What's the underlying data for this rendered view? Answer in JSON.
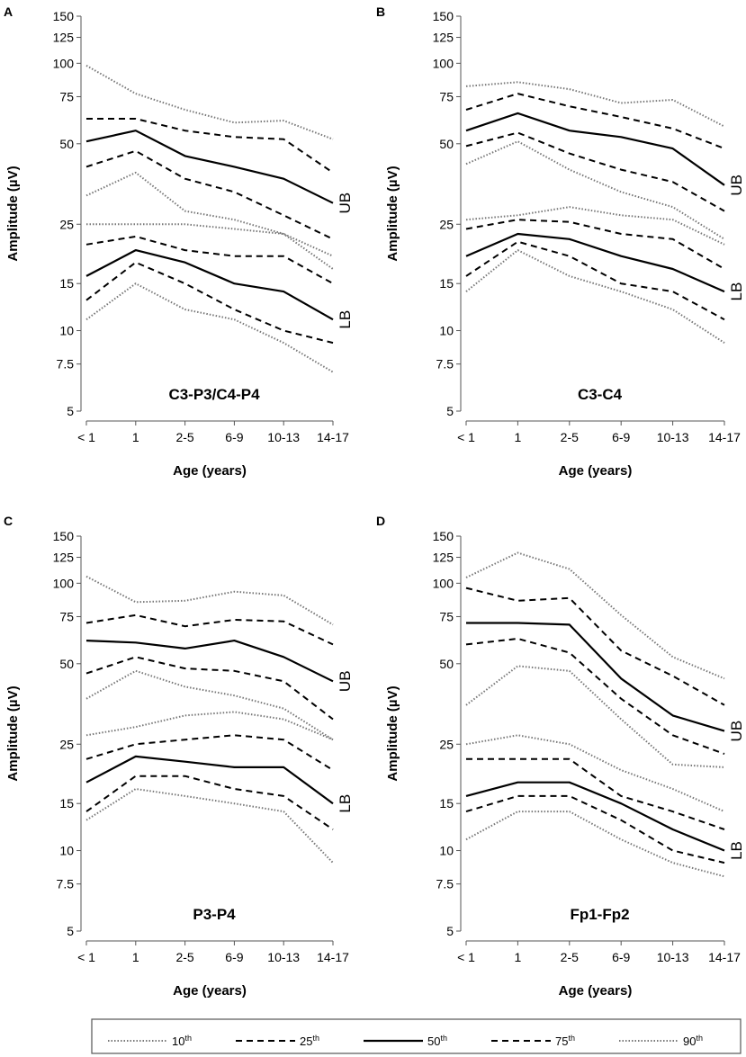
{
  "figure": {
    "y_axis_label": "Amplitude (µV)",
    "x_axis_label": "Age (years)"
  },
  "legend": [
    {
      "key": "p10",
      "label": "10",
      "sup": "th",
      "style": "dotted"
    },
    {
      "key": "p25",
      "label": "25",
      "sup": "th",
      "style": "dashed"
    },
    {
      "key": "p50",
      "label": "50",
      "sup": "th",
      "style": "solid"
    },
    {
      "key": "p75",
      "label": "75",
      "sup": "th",
      "style": "dashed"
    },
    {
      "key": "p90",
      "label": "90",
      "sup": "th",
      "style": "dotted"
    }
  ],
  "chart_data": [
    {
      "type": "line",
      "panel": "A",
      "title": "C3-P3/C4-P4",
      "xlabel": "Age (years)",
      "ylabel": "Amplitude (µV)",
      "yscale": "log",
      "ylim": [
        5,
        150
      ],
      "categories": [
        "< 1",
        "1",
        "2-5",
        "6-9",
        "10-13",
        "14-17"
      ],
      "yticks": [
        5,
        7.5,
        10,
        15,
        25,
        50,
        75,
        100,
        125,
        150
      ],
      "ytick_labels": [
        "5",
        "7.5",
        "10",
        "15",
        "25",
        "50",
        "75",
        "100",
        "125",
        "150"
      ],
      "band_labels": {
        "UB": "UB",
        "LB": "LB"
      },
      "series": [
        {
          "name": "UB 90th",
          "style": "dotted",
          "values": [
            98,
            77,
            67,
            60,
            61,
            52
          ]
        },
        {
          "name": "UB 75th",
          "style": "dashed",
          "values": [
            62,
            62,
            56,
            53,
            52,
            39
          ]
        },
        {
          "name": "UB 50th",
          "style": "solid",
          "values": [
            51,
            56,
            45,
            41,
            37,
            30
          ]
        },
        {
          "name": "UB 25th",
          "style": "dashed",
          "values": [
            41,
            47,
            37,
            33,
            27,
            22
          ]
        },
        {
          "name": "UB 10th",
          "style": "dotted",
          "values": [
            32,
            39,
            28,
            26,
            23,
            17
          ]
        },
        {
          "name": "LB 90th",
          "style": "dotted",
          "values": [
            25,
            25,
            25,
            24,
            23,
            19
          ]
        },
        {
          "name": "LB 75th",
          "style": "dashed",
          "values": [
            21,
            22.5,
            20,
            19,
            19,
            15
          ]
        },
        {
          "name": "LB 50th",
          "style": "solid",
          "values": [
            16,
            20,
            18,
            15,
            14,
            11
          ]
        },
        {
          "name": "LB 25th",
          "style": "dashed",
          "values": [
            13,
            18,
            15,
            12,
            10,
            9
          ]
        },
        {
          "name": "LB 10th",
          "style": "dotted",
          "values": [
            11,
            15,
            12,
            11,
            9,
            7
          ]
        }
      ]
    },
    {
      "type": "line",
      "panel": "B",
      "title": "C3-C4",
      "xlabel": "Age (years)",
      "ylabel": "Amplitude (µV)",
      "yscale": "log",
      "ylim": [
        5,
        150
      ],
      "categories": [
        "< 1",
        "1",
        "2-5",
        "6-9",
        "10-13",
        "14-17"
      ],
      "yticks": [
        5,
        7.5,
        10,
        15,
        25,
        50,
        75,
        100,
        125,
        150
      ],
      "ytick_labels": [
        "5",
        "7.5",
        "10",
        "15",
        "25",
        "50",
        "75",
        "100",
        "125",
        "150"
      ],
      "band_labels": {
        "UB": "UB",
        "LB": "LB"
      },
      "series": [
        {
          "name": "UB 90th",
          "style": "dotted",
          "values": [
            82,
            85,
            80,
            71,
            73,
            58
          ]
        },
        {
          "name": "UB 75th",
          "style": "dashed",
          "values": [
            67,
            77,
            69,
            63,
            57,
            48
          ]
        },
        {
          "name": "UB 50th",
          "style": "solid",
          "values": [
            56,
            65,
            56,
            53,
            48,
            35
          ]
        },
        {
          "name": "UB 25th",
          "style": "dashed",
          "values": [
            49,
            55,
            46,
            40,
            36,
            28
          ]
        },
        {
          "name": "UB 10th",
          "style": "dotted",
          "values": [
            42,
            51,
            40,
            33,
            29,
            22
          ]
        },
        {
          "name": "LB 90th",
          "style": "dotted",
          "values": [
            26,
            27,
            29,
            27,
            26,
            21
          ]
        },
        {
          "name": "LB 75th",
          "style": "dashed",
          "values": [
            24,
            26,
            25.5,
            23,
            22,
            17
          ]
        },
        {
          "name": "LB 50th",
          "style": "solid",
          "values": [
            19,
            23,
            22,
            19,
            17,
            14
          ]
        },
        {
          "name": "LB 25th",
          "style": "dashed",
          "values": [
            16,
            21.5,
            19,
            15,
            14,
            11
          ]
        },
        {
          "name": "LB 10th",
          "style": "dotted",
          "values": [
            14,
            20,
            16,
            14,
            12,
            9
          ]
        }
      ]
    },
    {
      "type": "line",
      "panel": "C",
      "title": "P3-P4",
      "xlabel": "Age (years)",
      "ylabel": "Amplitude (µV)",
      "yscale": "log",
      "ylim": [
        5,
        150
      ],
      "categories": [
        "< 1",
        "1",
        "2-5",
        "6-9",
        "10-13",
        "14-17"
      ],
      "yticks": [
        5,
        7.5,
        10,
        15,
        25,
        50,
        75,
        100,
        125,
        150
      ],
      "ytick_labels": [
        "5",
        "7.5",
        "10",
        "15",
        "25",
        "50",
        "75",
        "100",
        "125",
        "150"
      ],
      "band_labels": {
        "UB": "UB",
        "LB": "LB"
      },
      "series": [
        {
          "name": "UB 90th",
          "style": "dotted",
          "values": [
            106,
            85,
            86,
            93,
            90,
            70
          ]
        },
        {
          "name": "UB 75th",
          "style": "dashed",
          "values": [
            71,
            76,
            69,
            73,
            72,
            59
          ]
        },
        {
          "name": "UB 50th",
          "style": "solid",
          "values": [
            61,
            60,
            57,
            61,
            53,
            43
          ]
        },
        {
          "name": "UB 25th",
          "style": "dashed",
          "values": [
            46,
            53,
            48,
            47,
            43,
            31
          ]
        },
        {
          "name": "UB 10th",
          "style": "dotted",
          "values": [
            37,
            47,
            41,
            38,
            34,
            26
          ]
        },
        {
          "name": "LB 90th",
          "style": "dotted",
          "values": [
            27,
            29,
            32,
            33,
            31,
            26
          ]
        },
        {
          "name": "LB 75th",
          "style": "dashed",
          "values": [
            22,
            25,
            26,
            27,
            26,
            20
          ]
        },
        {
          "name": "LB 50th",
          "style": "solid",
          "values": [
            18,
            22.5,
            21.5,
            20.5,
            20.5,
            15
          ]
        },
        {
          "name": "LB 25th",
          "style": "dashed",
          "values": [
            14,
            19,
            19,
            17,
            16,
            12
          ]
        },
        {
          "name": "LB 10th",
          "style": "dotted",
          "values": [
            13,
            17,
            16,
            15,
            14,
            9
          ]
        }
      ]
    },
    {
      "type": "line",
      "panel": "D",
      "title": "Fp1-Fp2",
      "xlabel": "Age (years)",
      "ylabel": "Amplitude (µV)",
      "yscale": "log",
      "ylim": [
        5,
        150
      ],
      "categories": [
        "< 1",
        "1",
        "2-5",
        "6-9",
        "10-13",
        "14-17"
      ],
      "yticks": [
        5,
        7.5,
        10,
        15,
        25,
        50,
        75,
        100,
        125,
        150
      ],
      "ytick_labels": [
        "5",
        "7.5",
        "10",
        "15",
        "25",
        "50",
        "75",
        "100",
        "125",
        "150"
      ],
      "band_labels": {
        "UB": "UB",
        "LB": "LB"
      },
      "series": [
        {
          "name": "UB 90th",
          "style": "dotted",
          "values": [
            105,
            130,
            113,
            76,
            53,
            44
          ]
        },
        {
          "name": "UB 75th",
          "style": "dashed",
          "values": [
            96,
            86,
            88,
            56,
            45,
            35
          ]
        },
        {
          "name": "UB 50th",
          "style": "solid",
          "values": [
            71,
            71,
            70,
            44,
            32,
            28
          ]
        },
        {
          "name": "UB 25th",
          "style": "dashed",
          "values": [
            59,
            62,
            55,
            37,
            27,
            23
          ]
        },
        {
          "name": "UB 10th",
          "style": "dotted",
          "values": [
            35,
            49,
            47,
            31,
            21,
            20.5
          ]
        },
        {
          "name": "LB 90th",
          "style": "dotted",
          "values": [
            25,
            27,
            25,
            20,
            17,
            14
          ]
        },
        {
          "name": "LB 75th",
          "style": "dashed",
          "values": [
            22,
            22,
            22,
            16,
            14,
            12
          ]
        },
        {
          "name": "LB 50th",
          "style": "solid",
          "values": [
            16,
            18,
            18,
            15,
            12,
            10
          ]
        },
        {
          "name": "LB 25th",
          "style": "dashed",
          "values": [
            14,
            16,
            16,
            13,
            10,
            9
          ]
        },
        {
          "name": "LB 10th",
          "style": "dotted",
          "values": [
            11,
            14,
            14,
            11,
            9,
            8
          ]
        }
      ]
    }
  ]
}
